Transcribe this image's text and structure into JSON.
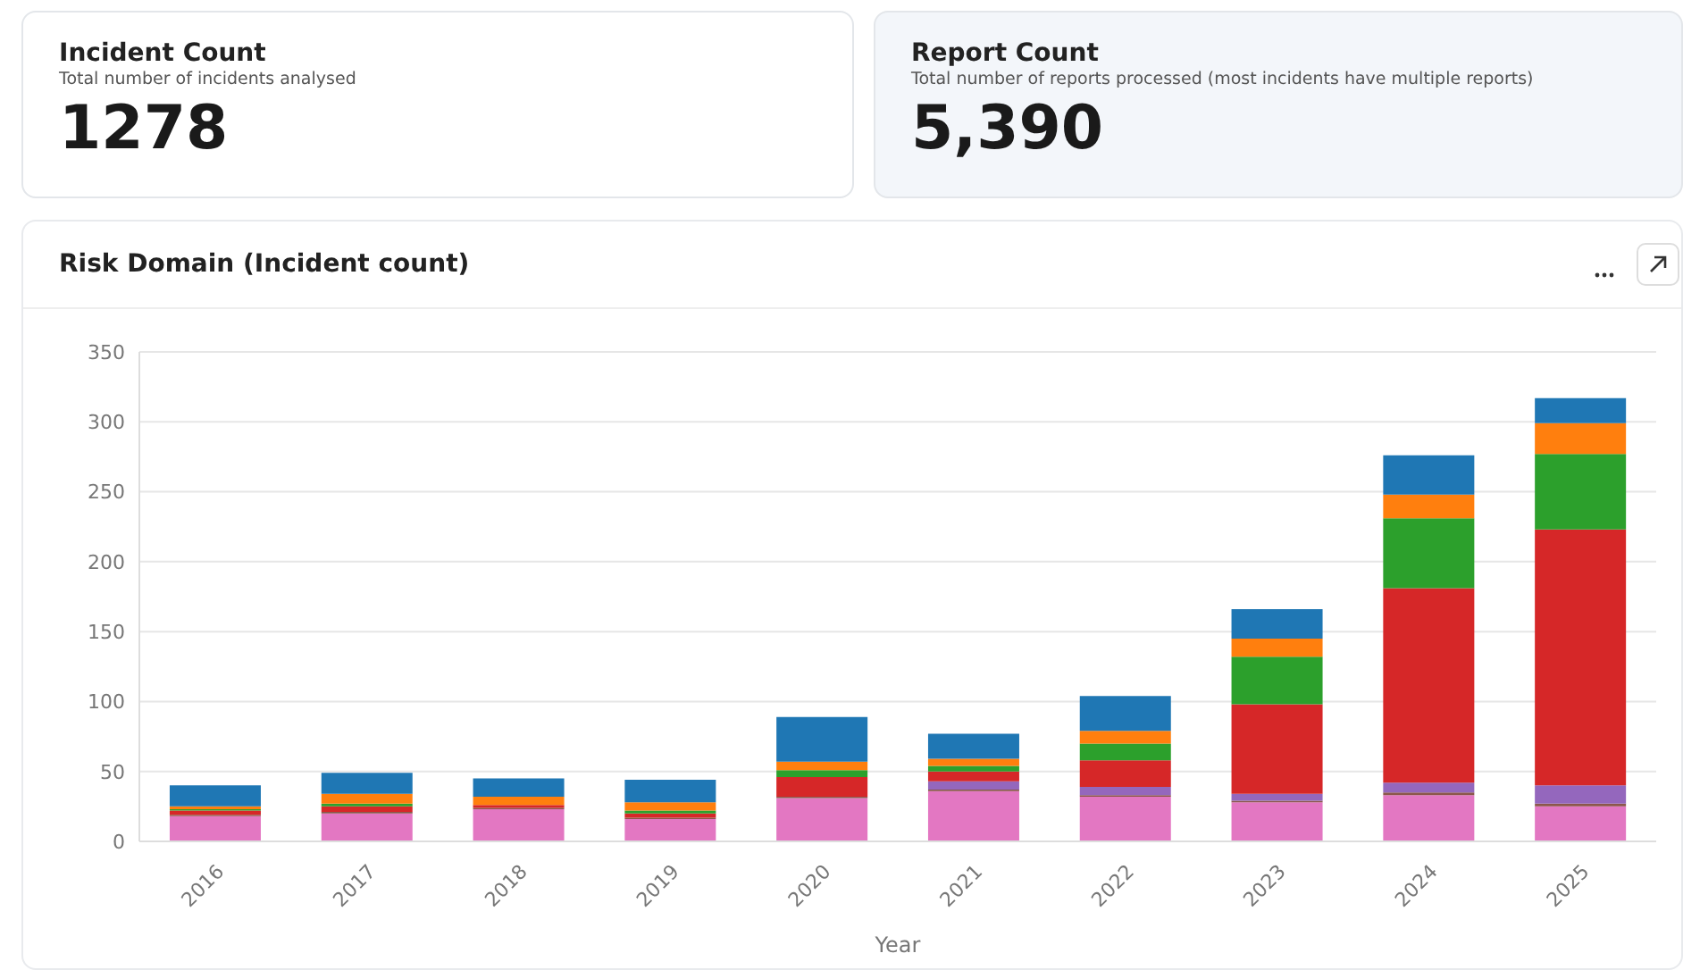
{
  "chart_data": [
    {
      "type": "other",
      "title": "Incident Count",
      "subtitle": "Total number of incidents analysed",
      "annotations": [
        "1278"
      ]
    },
    {
      "type": "other",
      "title": "Report Count",
      "subtitle": "Total number of reports processed (most incidents have multiple reports)",
      "annotations": [
        "5,390"
      ]
    },
    {
      "type": "bar",
      "title": "Risk Domain (Incident count)",
      "xlabel": "Year",
      "categories": [
        "2016",
        "2017",
        "2018",
        "2019",
        "2020",
        "2021",
        "2022",
        "2023",
        "2024",
        "2025"
      ],
      "stacked": true,
      "ylim": [
        0,
        350
      ],
      "yticks": [
        0,
        50,
        100,
        150,
        200,
        250,
        300,
        350
      ],
      "grid": "y",
      "legend": false,
      "series": [
        {
          "color": "#e377c2",
          "values": [
            18,
            20,
            23,
            16,
            31,
            36,
            32,
            28,
            33,
            25
          ]
        },
        {
          "color": "#8c564b",
          "values": [
            1,
            1,
            1,
            1,
            1,
            1,
            1,
            1,
            2,
            2
          ]
        },
        {
          "color": "#9467bd",
          "values": [
            0,
            0,
            0,
            0,
            0,
            6,
            6,
            5,
            7,
            13
          ]
        },
        {
          "color": "#d62728",
          "values": [
            3,
            4,
            2,
            3,
            14,
            7,
            19,
            64,
            139,
            183
          ]
        },
        {
          "color": "#2ca02c",
          "values": [
            1,
            2,
            0,
            2,
            5,
            4,
            12,
            34,
            50,
            54
          ]
        },
        {
          "color": "#ff7f0e",
          "values": [
            2,
            7,
            6,
            6,
            6,
            5,
            9,
            13,
            17,
            22
          ]
        },
        {
          "color": "#1f77b4",
          "values": [
            15,
            15,
            13,
            16,
            32,
            18,
            25,
            21,
            28,
            18
          ]
        }
      ]
    }
  ]
}
